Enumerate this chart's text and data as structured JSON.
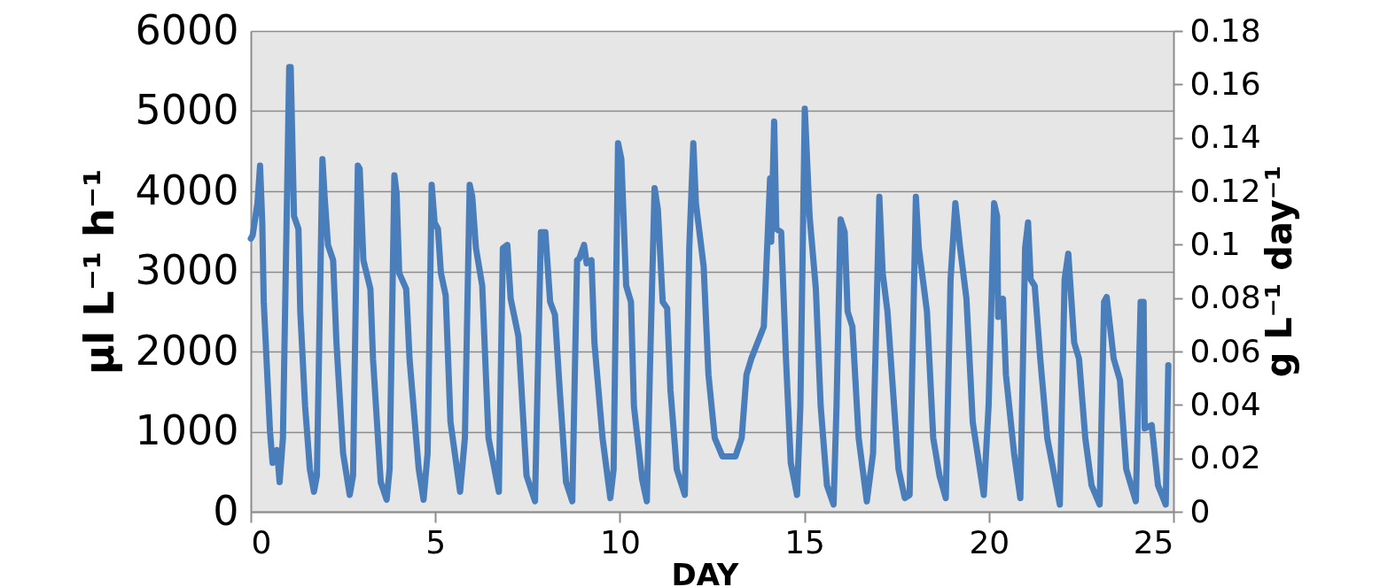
{
  "chart_data": {
    "type": "line",
    "xlabel": "DAY",
    "ylabel": "µl L⁻¹ h⁻¹",
    "y2label": "g L⁻¹ day⁻¹",
    "xlim": [
      0,
      25
    ],
    "xticks": [
      0,
      5,
      10,
      15,
      20,
      25
    ],
    "ylim": [
      0,
      6000
    ],
    "yticks": [
      0,
      1000,
      2000,
      3000,
      4000,
      5000,
      6000
    ],
    "y2lim": [
      0,
      0.18
    ],
    "y2ticks": [
      0,
      0.02,
      0.04,
      0.06,
      0.08,
      0.1,
      0.12,
      0.14,
      0.16,
      0.18
    ],
    "grid": "y",
    "marker": "none",
    "line_style": "solid",
    "series": [
      {
        "color": "#4a7ebb",
        "x": [
          0,
          0.05,
          0.18,
          0.25,
          0.31,
          0.35,
          0.52,
          0.59,
          0.71,
          0.78,
          0.87,
          1.04,
          1.08,
          1.17,
          1.29,
          1.34,
          1.47,
          1.6,
          1.71,
          1.79,
          1.94,
          2.0,
          2.09,
          2.23,
          2.32,
          2.5,
          2.68,
          2.77,
          2.9,
          2.95,
          3.05,
          3.24,
          3.31,
          3.52,
          3.68,
          3.76,
          3.89,
          3.95,
          4.02,
          4.21,
          4.3,
          4.55,
          4.68,
          4.79,
          4.9,
          4.98,
          5.07,
          5.15,
          5.28,
          5.41,
          5.67,
          5.8,
          5.93,
          6.0,
          6.1,
          6.27,
          6.44,
          6.72,
          6.83,
          6.95,
          7.04,
          7.25,
          7.47,
          7.7,
          7.86,
          7.98,
          8.11,
          8.24,
          8.37,
          8.54,
          8.71,
          8.84,
          8.9,
          9.03,
          9.1,
          9.23,
          9.31,
          9.53,
          9.74,
          9.83,
          9.95,
          10.04,
          10.17,
          10.3,
          10.38,
          10.6,
          10.73,
          10.81,
          10.94,
          11.03,
          11.16,
          11.28,
          11.37,
          11.54,
          11.76,
          11.88,
          11.99,
          12.06,
          12.27,
          12.4,
          12.57,
          12.78,
          13.13,
          13.3,
          13.43,
          13.56,
          13.73,
          13.9,
          13.99,
          14.07,
          14.1,
          14.18,
          14.24,
          14.37,
          14.5,
          14.63,
          14.8,
          14.89,
          15.01,
          15.14,
          15.31,
          15.44,
          15.61,
          15.79,
          15.87,
          15.98,
          16.09,
          16.17,
          16.3,
          16.47,
          16.69,
          16.86,
          17.03,
          17.12,
          17.25,
          17.37,
          17.55,
          17.72,
          17.85,
          18.02,
          18.1,
          18.32,
          18.49,
          18.66,
          18.83,
          18.96,
          19.09,
          19.22,
          19.39,
          19.56,
          19.86,
          19.99,
          20.14,
          20.22,
          20.25,
          20.38,
          20.46,
          20.68,
          20.85,
          20.98,
          21.06,
          21.13,
          21.24,
          21.39,
          21.58,
          21.92,
          22.05,
          22.15,
          22.31,
          22.44,
          22.61,
          22.78,
          23.0,
          23.12,
          23.19,
          23.38,
          23.55,
          23.72,
          23.98,
          24.11,
          24.19,
          24.22,
          24.41,
          24.58,
          24.79,
          24.86
        ],
        "values": [
          3410,
          3450,
          3850,
          4320,
          3610,
          2620,
          1000,
          610,
          770,
          370,
          920,
          5550,
          5550,
          3690,
          3530,
          2500,
          1320,
          530,
          250,
          450,
          4400,
          3930,
          3330,
          3140,
          2110,
          730,
          210,
          450,
          4320,
          4280,
          3140,
          2780,
          1910,
          370,
          150,
          530,
          4200,
          3970,
          2980,
          2780,
          1910,
          530,
          150,
          730,
          4080,
          3610,
          3530,
          2980,
          2700,
          1120,
          250,
          920,
          4080,
          3930,
          3290,
          2820,
          920,
          250,
          3290,
          3330,
          2660,
          2190,
          450,
          130,
          3490,
          3490,
          2620,
          2460,
          1520,
          370,
          130,
          3140,
          3160,
          3330,
          3100,
          3140,
          2110,
          920,
          170,
          530,
          4600,
          4400,
          2820,
          2620,
          1320,
          410,
          130,
          1710,
          4040,
          3770,
          2620,
          2540,
          1520,
          530,
          210,
          3290,
          4600,
          3850,
          3060,
          1710,
          920,
          690,
          690,
          920,
          1710,
          1910,
          2110,
          2310,
          3290,
          4160,
          3370,
          4870,
          3530,
          3490,
          1910,
          610,
          210,
          1320,
          5030,
          3690,
          2780,
          1320,
          330,
          90,
          1320,
          3650,
          3490,
          2500,
          2310,
          920,
          130,
          730,
          3930,
          2980,
          2500,
          1710,
          530,
          170,
          210,
          3930,
          3290,
          2500,
          920,
          450,
          170,
          2900,
          3850,
          3290,
          2660,
          1120,
          210,
          1320,
          3850,
          3690,
          2430,
          2660,
          1710,
          730,
          170,
          3290,
          3610,
          2900,
          2820,
          1910,
          920,
          90,
          2900,
          3220,
          2110,
          1910,
          920,
          330,
          90,
          2620,
          2680,
          1910,
          1640,
          530,
          130,
          2620,
          2620,
          1040,
          1080,
          330,
          90,
          1830
        ]
      }
    ]
  }
}
